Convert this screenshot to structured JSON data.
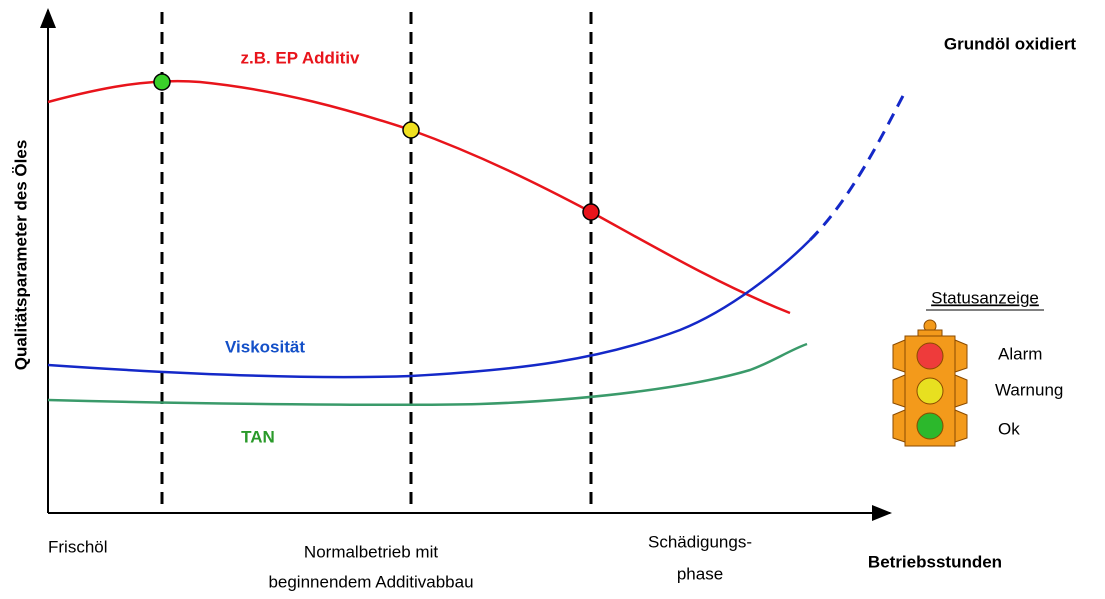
{
  "axes": {
    "y_label": "Qualitätsparameter des Öles",
    "x_label": "Betriebsstunden"
  },
  "curves": [
    {
      "label": "z.B. EP Additiv"
    },
    {
      "label": "Viskosität"
    },
    {
      "label": "TAN"
    }
  ],
  "annotation": "Grundöl oxidiert",
  "phases": [
    {
      "lines": [
        "Frischöl"
      ]
    },
    {
      "lines": [
        "Normalbetrieb mit",
        "beginnendem Additivabbau"
      ]
    },
    {
      "lines": [
        "Schädigungs-",
        "phase"
      ]
    }
  ],
  "legend": {
    "title": "Statusanzeige",
    "items": [
      "Alarm",
      "Warnung",
      "Ok"
    ]
  }
}
